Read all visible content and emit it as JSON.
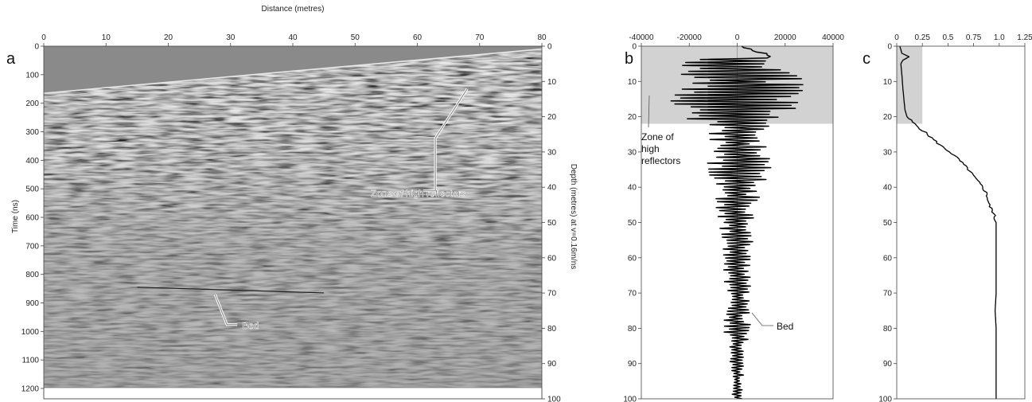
{
  "chart_data": [
    {
      "panel": "a",
      "type": "heatmap",
      "xlabel": "Distance (metres)",
      "ylabel": "Time (ns)",
      "y2label": "Depth (metres) at v=0.16m/ns",
      "xlim": [
        0,
        80
      ],
      "ylim": [
        1200,
        0
      ],
      "y2lim": [
        100,
        0
      ],
      "x_ticks": [
        "0",
        "10",
        "20",
        "30",
        "40",
        "50",
        "60",
        "70",
        "80"
      ],
      "y_ticks": [
        "0",
        "100",
        "200",
        "300",
        "400",
        "500",
        "600",
        "700",
        "800",
        "900",
        "1000",
        "1100",
        "1200"
      ],
      "y2_ticks": [
        "0",
        "10",
        "20",
        "30",
        "40",
        "50",
        "60",
        "70",
        "80",
        "90",
        "100"
      ],
      "first_break": {
        "x": [
          0,
          80
        ],
        "time_ns": [
          165,
          10
        ]
      },
      "bed_reflector": {
        "x": [
          15,
          45
        ],
        "time_ns": [
          845,
          865
        ]
      },
      "annotations": [
        {
          "text": "Zone of high reflectors",
          "point": {
            "x": 68,
            "time_ns": 150
          }
        },
        {
          "text": "Bed",
          "point": {
            "x": 27.5,
            "time_ns": 870
          }
        }
      ]
    },
    {
      "panel": "b",
      "type": "line",
      "xlim": [
        -40000,
        40000
      ],
      "ylim": [
        100,
        0
      ],
      "x_ticks": [
        "-40000",
        "-20000",
        "0",
        "20000",
        "40000"
      ],
      "y_ticks": [
        "0",
        "10",
        "20",
        "30",
        "40",
        "50",
        "60",
        "70",
        "80",
        "90",
        "100"
      ],
      "shaded_depth": [
        0,
        22
      ],
      "envelope": {
        "depth": [
          0,
          3,
          5,
          8,
          10,
          12,
          15,
          18,
          20,
          22,
          25,
          30,
          35,
          40,
          45,
          50,
          55,
          60,
          65,
          70,
          75,
          80,
          85,
          90,
          95,
          100
        ],
        "amplitude": [
          2000,
          18000,
          26000,
          30000,
          30000,
          30000,
          30000,
          29000,
          26000,
          14000,
          13000,
          12000,
          16000,
          10000,
          9000,
          8000,
          7000,
          6000,
          7000,
          5000,
          5000,
          6000,
          4000,
          3000,
          2500,
          2000
        ]
      },
      "annotations": [
        {
          "text": "Zone of high reflectors",
          "point": {
            "x": -28000,
            "depth": 12
          }
        },
        {
          "text": "Bed",
          "point": {
            "x": 5000,
            "depth": 75
          }
        }
      ]
    },
    {
      "panel": "c",
      "type": "line",
      "xlim": [
        0,
        1.25
      ],
      "ylim": [
        100,
        0
      ],
      "x_ticks": [
        "0",
        "0.25",
        "0.5",
        "0.75",
        "1.0",
        "1.25"
      ],
      "y_ticks": [
        "0",
        "10",
        "20",
        "30",
        "40",
        "50",
        "60",
        "70",
        "80",
        "90",
        "100"
      ],
      "shaded_depth": [
        0,
        22
      ],
      "shaded_x": [
        0,
        0.25
      ],
      "depth": [
        0,
        2,
        3,
        4,
        5,
        8,
        12,
        15,
        18,
        20,
        22,
        25,
        28,
        30,
        32,
        35,
        38,
        40,
        42,
        45,
        47,
        50,
        55,
        60,
        65,
        70,
        75,
        80,
        90,
        100
      ],
      "values": [
        0.03,
        0.05,
        0.12,
        0.06,
        0.04,
        0.05,
        0.06,
        0.07,
        0.08,
        0.1,
        0.17,
        0.3,
        0.42,
        0.52,
        0.6,
        0.7,
        0.78,
        0.84,
        0.88,
        0.9,
        0.94,
        0.97,
        0.97,
        0.97,
        0.97,
        0.97,
        0.96,
        0.97,
        0.97,
        0.97
      ]
    }
  ],
  "labels": {
    "panel_a": "a",
    "panel_b": "b",
    "panel_c": "c",
    "a_xlabel": "Distance (metres)",
    "a_ylabel": "Time (ns)",
    "a_y2label": "Depth (metres) at v=0.16m/ns",
    "zone_a": "Zone of high reflectors",
    "bed_a": "Bed",
    "zone_b_1": "Zone of",
    "zone_b_2": "high",
    "zone_b_3": "reflectors",
    "bed_b": "Bed"
  }
}
